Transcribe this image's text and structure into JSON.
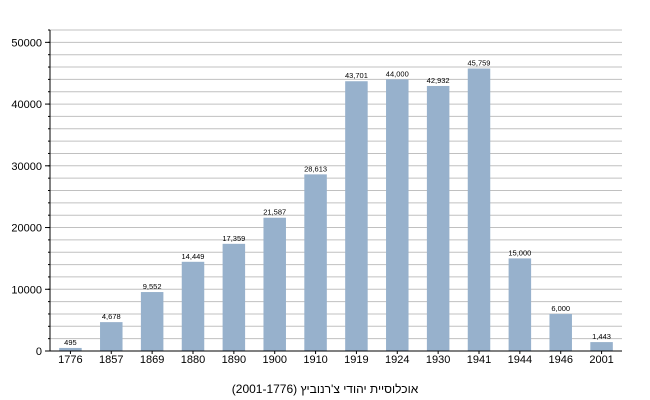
{
  "chart_data": {
    "type": "bar",
    "title": "אוכלוסיית יהודי צ'רנוביץ (2001-1776)",
    "xlabel": "",
    "ylabel": "",
    "categories": [
      "1776",
      "1857",
      "1869",
      "1880",
      "1890",
      "1900",
      "1910",
      "1919",
      "1924",
      "1930",
      "1941",
      "1944",
      "1946",
      "2001"
    ],
    "values": [
      495,
      4678,
      9552,
      14449,
      17359,
      21587,
      28613,
      43701,
      44000,
      42932,
      45759,
      15000,
      6000,
      1443
    ],
    "value_labels": [
      "495",
      "4,678",
      "9,552",
      "14,449",
      "17,359",
      "21,587",
      "28,613",
      "43,701",
      "44,000",
      "42,932",
      "45,759",
      "15,000",
      "6,000",
      "1,443"
    ],
    "ylim": [
      0,
      52000
    ],
    "yticks": [
      "0",
      "10000",
      "20000",
      "30000",
      "40000",
      "50000"
    ],
    "ytick_values": [
      0,
      10000,
      20000,
      30000,
      40000,
      50000
    ],
    "grid": true,
    "grid_step": 2000,
    "bar_color": "#97b1cc",
    "grid_color": "#c0c0c0"
  }
}
